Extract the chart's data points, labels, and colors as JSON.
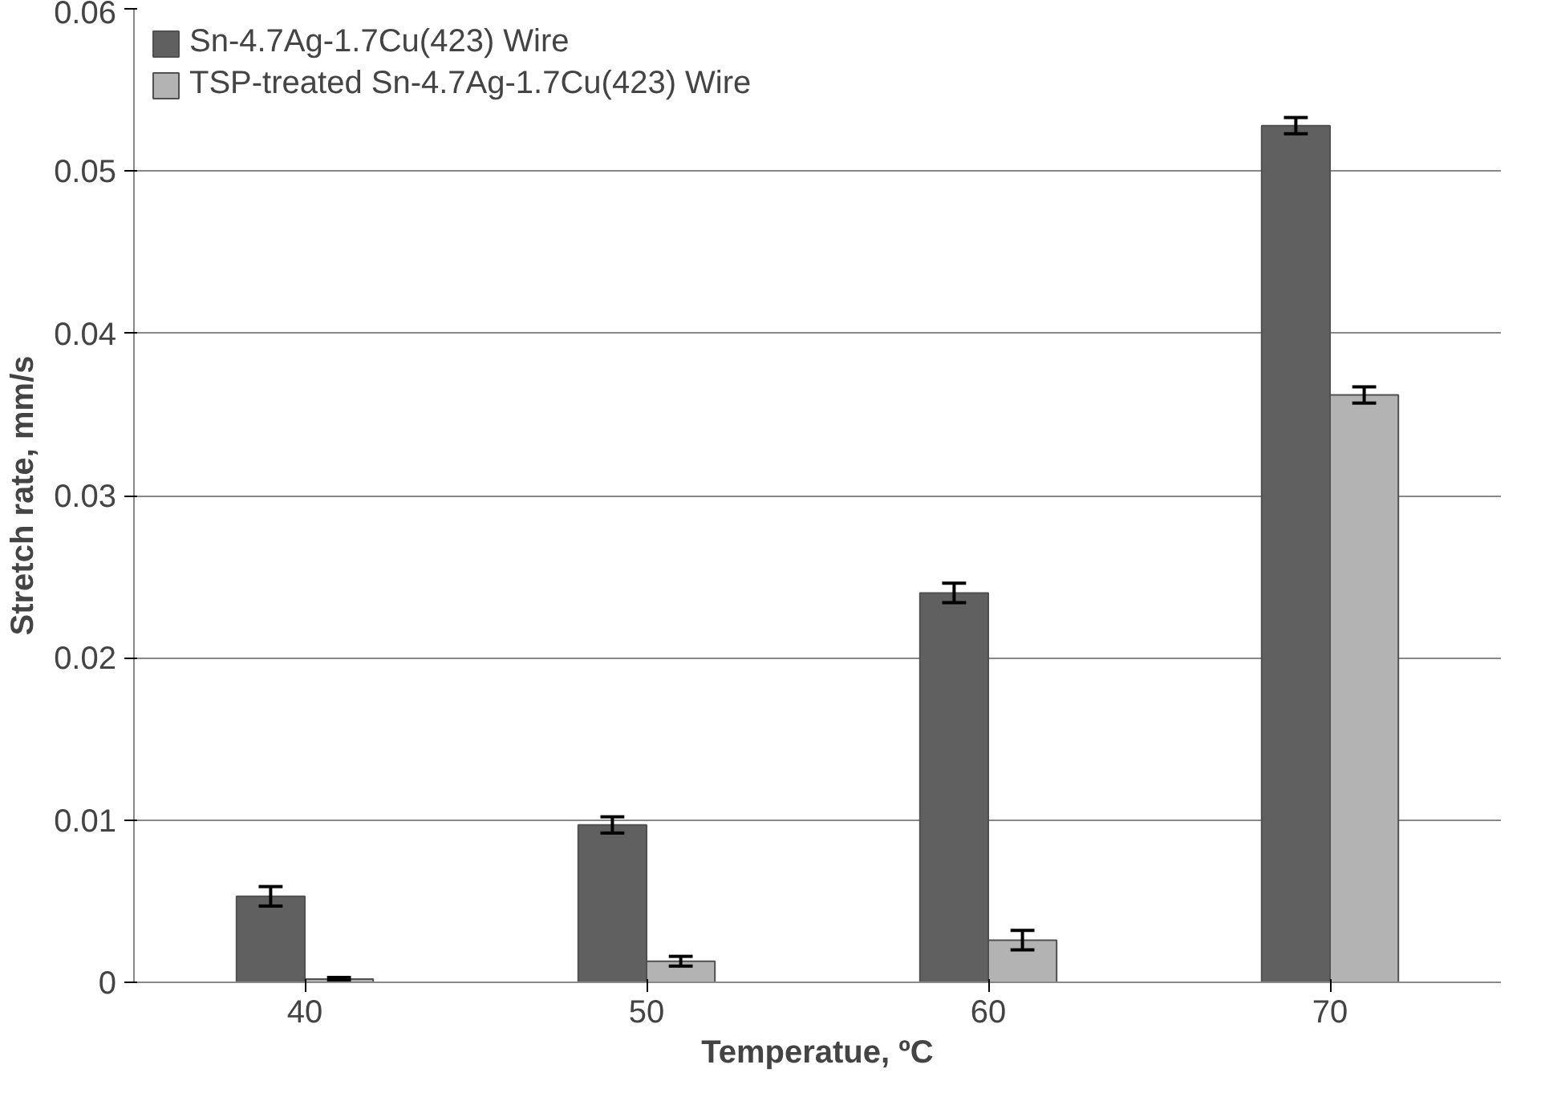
{
  "chart_data": {
    "type": "bar",
    "xlabel": "Temperatue, ºC",
    "ylabel": "Stretch rate, mm/s",
    "categories": [
      "40",
      "50",
      "60",
      "70"
    ],
    "series": [
      {
        "name": "Sn-4.7Ag-1.7Cu(423) Wire",
        "color": "#606060",
        "values": [
          0.0053,
          0.0097,
          0.024,
          0.0528
        ],
        "errors": [
          0.0006,
          0.0005,
          0.0006,
          0.0005
        ]
      },
      {
        "name": "TSP-treated Sn-4.7Ag-1.7Cu(423) Wire",
        "color": "#b3b3b3",
        "values": [
          0.0002,
          0.0013,
          0.0026,
          0.0362
        ],
        "errors": [
          0.0001,
          0.0003,
          0.0006,
          0.0005
        ]
      }
    ],
    "ylim": [
      0,
      0.06
    ],
    "yticks": [
      0,
      0.01,
      0.02,
      0.03,
      0.04,
      0.05,
      0.06
    ],
    "grid": "y",
    "legend": "top left"
  }
}
